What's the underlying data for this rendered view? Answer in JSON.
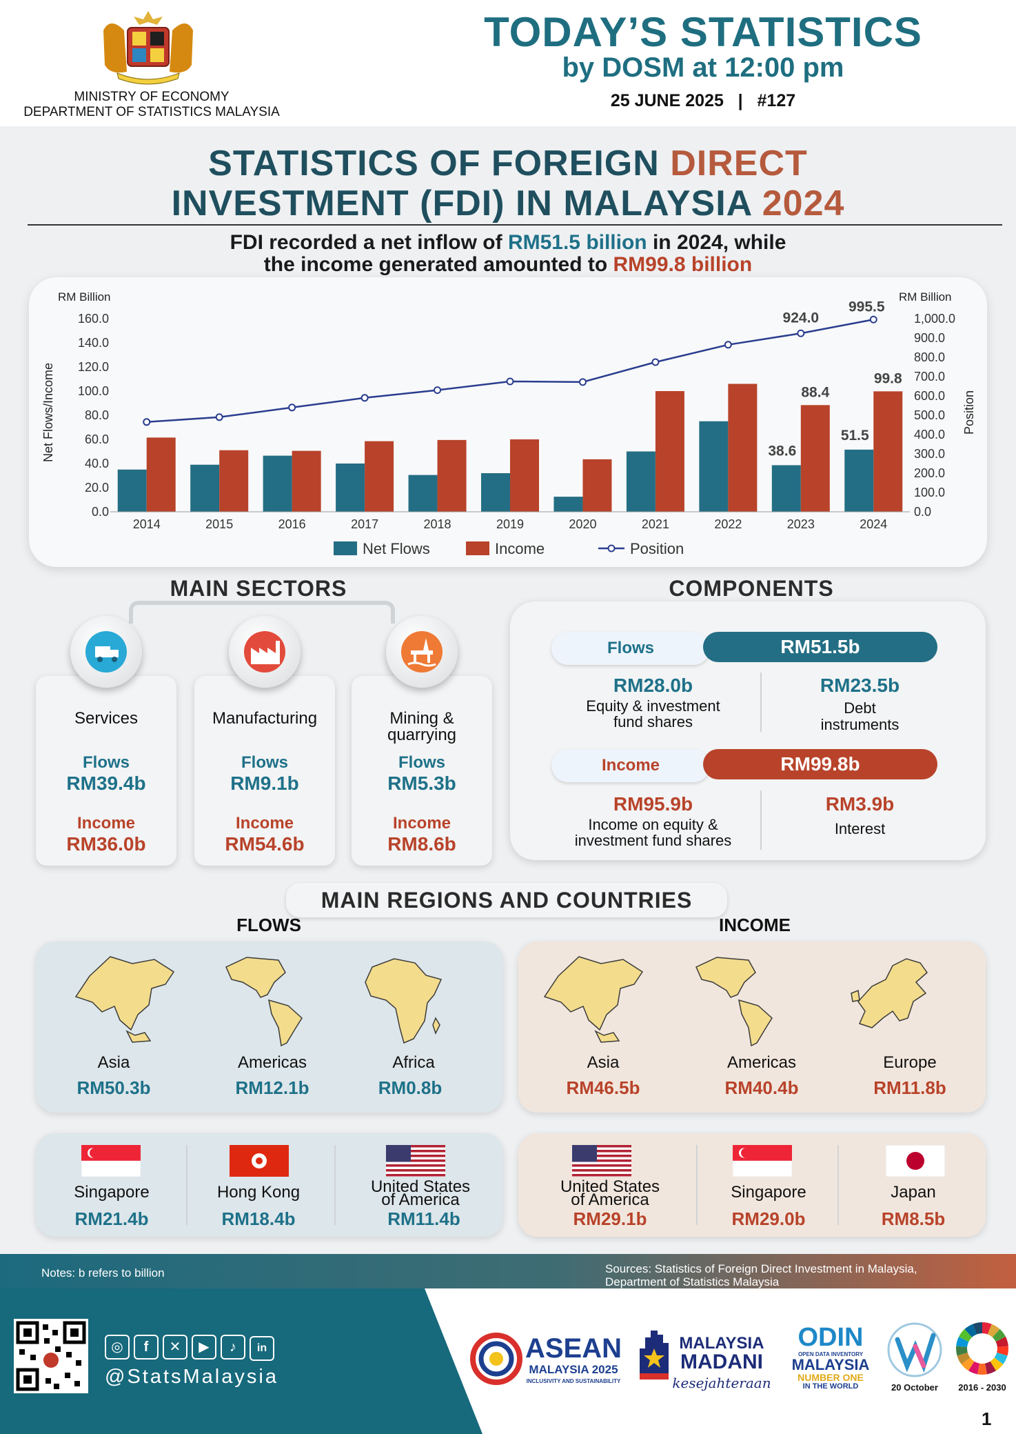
{
  "header": {
    "ministry_line1": "MINISTRY OF ECONOMY",
    "ministry_line2": "DEPARTMENT OF STATISTICS MALAYSIA",
    "title": "TODAY’S STATISTICS",
    "subtitle": "by DOSM at 12:00 pm",
    "date_issue": "25 JUNE 2025   |   #127"
  },
  "title": {
    "line1_a": "STATISTICS OF FOREIGN ",
    "line1_b": "DIRECT",
    "line2_a": "INVESTMENT (FDI) IN MALAYSIA ",
    "line2_b": "2024"
  },
  "headline": {
    "p1": "FDI recorded a net inflow of ",
    "p2": "RM51.5 billion",
    "p3": " in 2024, while",
    "p4": "the income generated amounted to ",
    "p5": "RM99.8 billion"
  },
  "chart_data": {
    "type": "bar",
    "categories": [
      "2014",
      "2015",
      "2016",
      "2017",
      "2018",
      "2019",
      "2020",
      "2021",
      "2022",
      "2023",
      "2024"
    ],
    "series": [
      {
        "name": "Net Flows",
        "type": "bar",
        "axis": "left",
        "color": "#236e84",
        "values": [
          35.0,
          39.0,
          46.5,
          40.0,
          30.5,
          32.0,
          12.5,
          50.0,
          75.0,
          38.6,
          51.5
        ]
      },
      {
        "name": "Income",
        "type": "bar",
        "axis": "left",
        "color": "#b8432a",
        "values": [
          61.5,
          51.0,
          50.5,
          58.5,
          59.5,
          60.0,
          43.5,
          100.0,
          106.0,
          88.4,
          99.8
        ]
      },
      {
        "name": "Position",
        "type": "line",
        "axis": "right",
        "color": "#2a3d8f",
        "values": [
          465,
          490,
          540,
          590,
          630,
          675,
          672,
          775,
          865,
          924.0,
          995.5
        ]
      }
    ],
    "ylabel": "Net Flows/Income",
    "ylabel_right": "Position",
    "yunit_left": "RM Billion",
    "yunit_right": "RM Billion",
    "ylim": [
      0,
      160
    ],
    "ylim_right": [
      0,
      1000
    ],
    "yticks": [
      "0.0",
      "20.0",
      "40.0",
      "60.0",
      "80.0",
      "100.0",
      "120.0",
      "140.0",
      "160.0"
    ],
    "yticks_right": [
      "0.0",
      "100.0",
      "200.0",
      "300.0",
      "400.0",
      "500.0",
      "600.0",
      "700.0",
      "800.0",
      "900.0",
      "1,000.0"
    ],
    "annotations": {
      "flows_2023": "38.6",
      "flows_2024": "51.5",
      "income_2023": "88.4",
      "income_2024": "99.8",
      "position_2023": "924.0",
      "position_2024": "995.5"
    },
    "legend_position": "bottom-center",
    "grid": false
  },
  "sectors": {
    "title": "MAIN SECTORS",
    "flows_label": "Flows",
    "income_label": "Income",
    "items": [
      {
        "name": "Services",
        "name2": "",
        "flows": "RM39.4b",
        "income": "RM36.0b",
        "icon": "logistics-icon"
      },
      {
        "name": "Manufacturing",
        "name2": "",
        "flows": "RM9.1b",
        "income": "RM54.6b",
        "icon": "factory-icon"
      },
      {
        "name": "Mining &",
        "name2": "quarrying",
        "flows": "RM5.3b",
        "income": "RM8.6b",
        "icon": "oil-rig-icon"
      }
    ]
  },
  "components": {
    "title": "COMPONENTS",
    "flows_label": "Flows",
    "flows_total": "RM51.5b",
    "flows_a_val": "RM28.0b",
    "flows_a_txt1": "Equity & investment",
    "flows_a_txt2": "fund shares",
    "flows_b_val": "RM23.5b",
    "flows_b_txt1": "Debt",
    "flows_b_txt2": "instruments",
    "income_label": "Income",
    "income_total": "RM99.8b",
    "income_a_val": "RM95.9b",
    "income_a_txt1": "Income on equity &",
    "income_a_txt2": "investment fund shares",
    "income_b_val": "RM3.9b",
    "income_b_txt1": "Interest"
  },
  "regions": {
    "title": "MAIN REGIONS AND COUNTRIES",
    "flows_head": "FLOWS",
    "income_head": "INCOME",
    "flows_regions": [
      {
        "name": "Asia",
        "value": "RM50.3b"
      },
      {
        "name": "Americas",
        "value": "RM12.1b"
      },
      {
        "name": "Africa",
        "value": "RM0.8b"
      }
    ],
    "income_regions": [
      {
        "name": "Asia",
        "value": "RM46.5b"
      },
      {
        "name": "Americas",
        "value": "RM40.4b"
      },
      {
        "name": "Europe",
        "value": "RM11.8b"
      }
    ],
    "flows_countries": [
      {
        "name": "Singapore",
        "name2": "",
        "value": "RM21.4b"
      },
      {
        "name": "Hong Kong",
        "name2": "",
        "value": "RM18.4b"
      },
      {
        "name": "United States",
        "name2": "of America",
        "value": "RM11.4b"
      }
    ],
    "income_countries": [
      {
        "name": "United States",
        "name2": "of America",
        "value": "RM29.1b"
      },
      {
        "name": "Singapore",
        "name2": "",
        "value": "RM29.0b"
      },
      {
        "name": "Japan",
        "name2": "",
        "value": "RM8.5b"
      }
    ]
  },
  "footer": {
    "notes": "Notes: b refers to billion",
    "sources1": "Sources: Statistics of Foreign Direct Investment in Malaysia,",
    "sources2": "Department of Statistics Malaysia",
    "handle": "@StatsMalaysia",
    "asean_big": "ASEAN",
    "asean_sub": "MALAYSIA 2025",
    "asean_tag": "INCLUSIVITY AND SUSTAINABILITY",
    "madani_1": "MALAYSIA",
    "madani_2": "MADANI",
    "madani_3": "kesejahteraan",
    "odin_1": "ODIN",
    "odin_2": "OPEN DATA INVENTORY",
    "odin_3": "MALAYSIA",
    "odin_4": "NUMBER ONE",
    "odin_5": "IN THE WORLD",
    "wsd_date": "20 October",
    "sdg_years": "2016 - 2030",
    "page": "1"
  },
  "colors": {
    "teal": "#1e7189",
    "rust": "#b8432a",
    "navy": "#2a3d8f",
    "map_yellow": "#f3dc8c"
  }
}
